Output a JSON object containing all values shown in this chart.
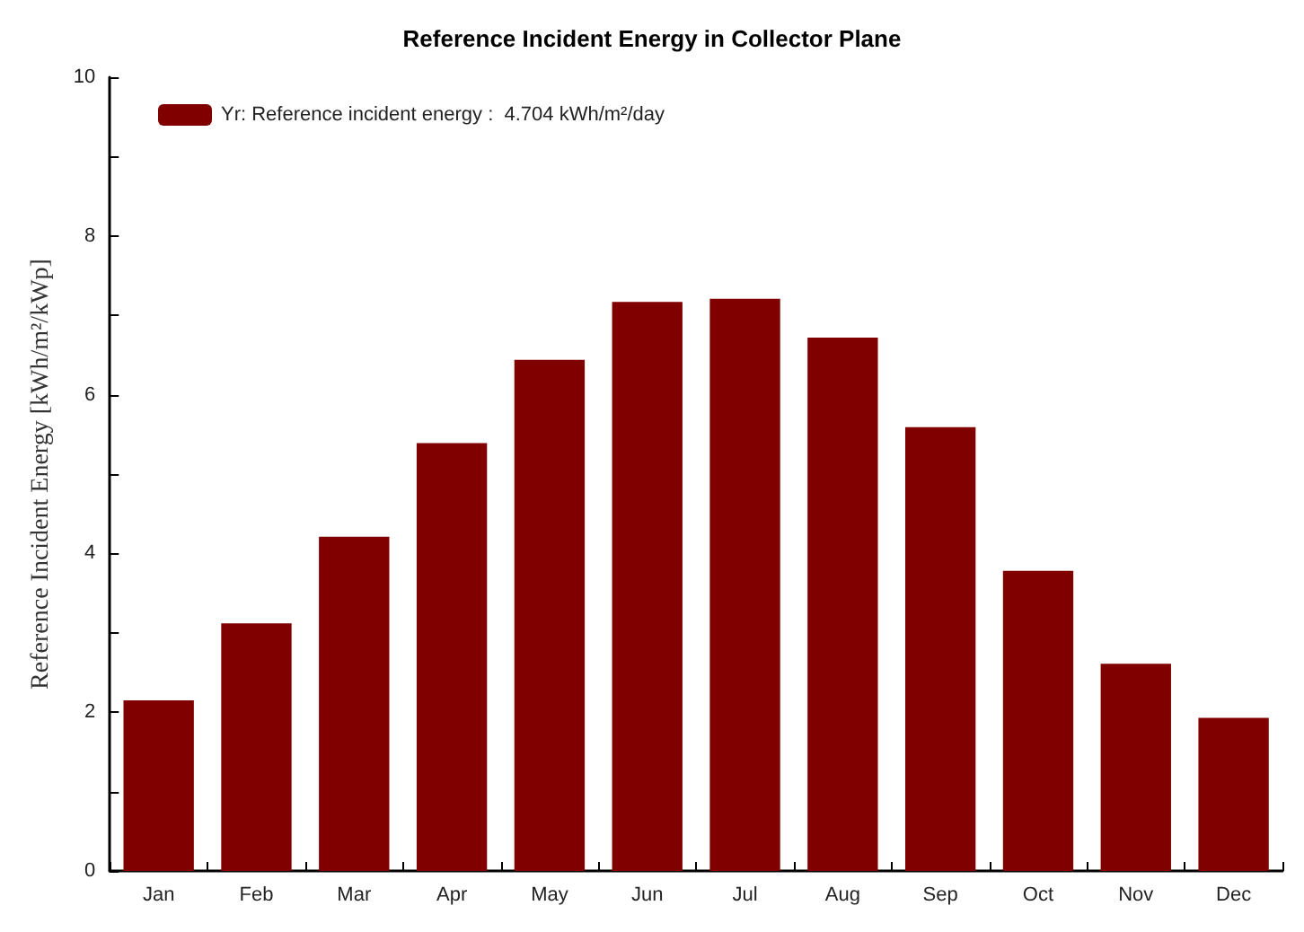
{
  "chart_data": {
    "type": "bar",
    "title": "Reference Incident Energy in Collector Plane",
    "ylabel": "Reference Incident Energy [kWh/m²/kWp]",
    "categories": [
      "Jan",
      "Feb",
      "Mar",
      "Apr",
      "May",
      "Jun",
      "Jul",
      "Aug",
      "Sep",
      "Oct",
      "Nov",
      "Dec"
    ],
    "series": [
      {
        "name": "Yr: Reference incident energy :  4.704 kWh/m²/day",
        "color": "#800000",
        "values": [
          2.15,
          3.12,
          4.21,
          5.39,
          6.44,
          7.17,
          7.21,
          6.72,
          5.59,
          3.78,
          2.61,
          1.93
        ]
      }
    ],
    "ylim": [
      0,
      10
    ],
    "yticks": [
      0,
      {
        "value": 1,
        "label": null
      },
      2,
      {
        "value": 3,
        "label": null
      },
      4,
      {
        "value": 5,
        "label": null
      },
      6,
      {
        "value": 7,
        "label": null
      },
      8,
      {
        "value": 9,
        "label": null
      },
      10
    ],
    "grid": false,
    "legend": "top left"
  }
}
